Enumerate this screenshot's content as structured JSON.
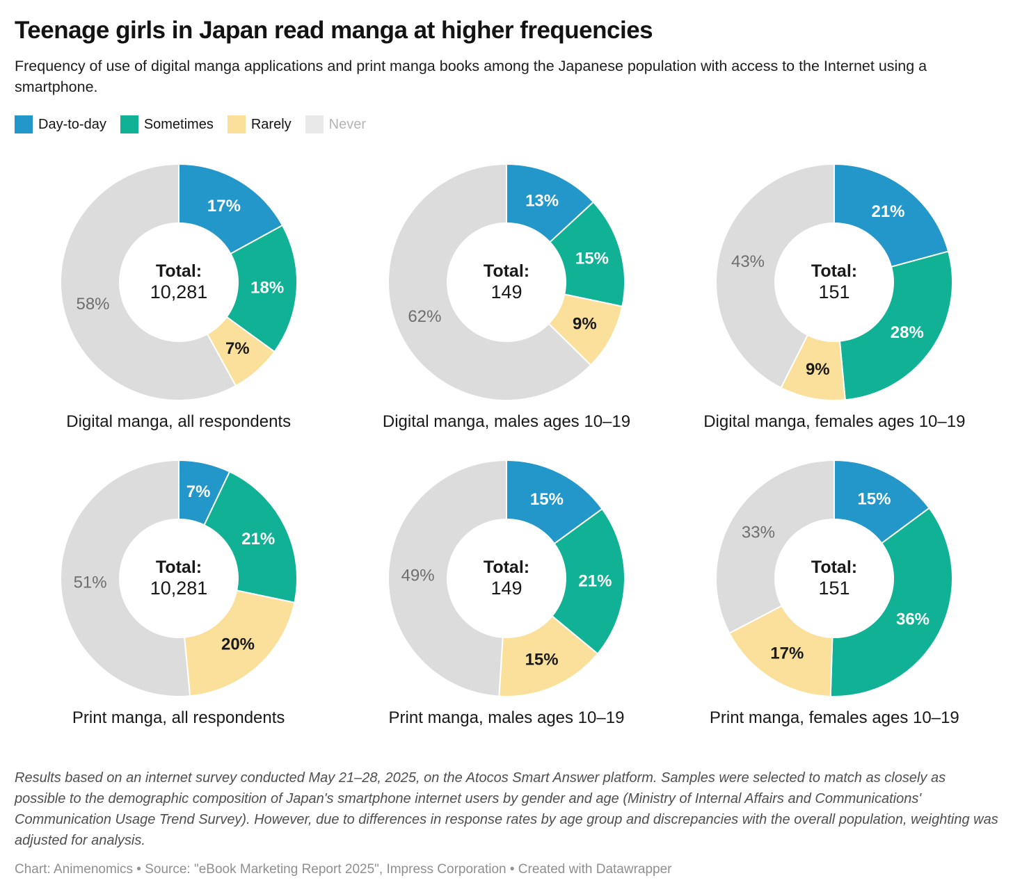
{
  "header": {
    "title": "Teenage girls in Japan read manga at higher frequencies",
    "subtitle": "Frequency of use of digital manga applications and print manga books among the Japanese population with access to the Internet using a smartphone."
  },
  "legend": [
    {
      "label": "Day-to-day",
      "swatch": "#2397c9",
      "text_color": "#131313"
    },
    {
      "label": "Sometimes",
      "swatch": "#10b194",
      "text_color": "#131313"
    },
    {
      "label": "Rarely",
      "swatch": "#fbe09c",
      "text_color": "#131313"
    },
    {
      "label": "Never",
      "swatch": "#e9e9e9",
      "text_color": "#b4b4b4"
    }
  ],
  "chart_data": {
    "type": "pie",
    "subtype": "donut",
    "legend_position": "top",
    "categories": [
      "Day-to-day",
      "Sometimes",
      "Rarely",
      "Never"
    ],
    "colors": [
      "#2397c9",
      "#10b194",
      "#fbe09c",
      "#dcdcdc"
    ],
    "value_label_colors": [
      "#ffffff",
      "#ffffff",
      "#1a1a1a",
      "#6e6e6e"
    ],
    "value_label_weights": [
      700,
      700,
      700,
      400
    ],
    "charts": [
      {
        "caption": "Digital manga, all respondents",
        "total_label": "Total:",
        "total": "10,281",
        "values": [
          17,
          18,
          7,
          58
        ],
        "labels": [
          "17%",
          "18%",
          "7%",
          "58%"
        ]
      },
      {
        "caption": "Digital manga, males ages 10–19",
        "total_label": "Total:",
        "total": "149",
        "values": [
          13,
          15,
          9,
          62
        ],
        "labels": [
          "13%",
          "15%",
          "9%",
          "62%"
        ]
      },
      {
        "caption": "Digital manga, females ages 10–19",
        "total_label": "Total:",
        "total": "151",
        "values": [
          21,
          28,
          9,
          43
        ],
        "labels": [
          "21%",
          "28%",
          "9%",
          "43%"
        ]
      },
      {
        "caption": "Print manga, all respondents",
        "total_label": "Total:",
        "total": "10,281",
        "values": [
          7,
          21,
          20,
          51
        ],
        "labels": [
          "7%",
          "21%",
          "20%",
          "51%"
        ]
      },
      {
        "caption": "Print manga, males ages 10–19",
        "total_label": "Total:",
        "total": "149",
        "values": [
          15,
          21,
          15,
          49
        ],
        "labels": [
          "15%",
          "21%",
          "15%",
          "49%"
        ]
      },
      {
        "caption": "Print manga, females ages 10–19",
        "total_label": "Total:",
        "total": "151",
        "values": [
          15,
          36,
          17,
          33
        ],
        "labels": [
          "15%",
          "36%",
          "17%",
          "33%"
        ]
      }
    ]
  },
  "footer": {
    "note": "Results based on an internet survey conducted May 21–28, 2025, on the Atocos Smart Answer platform. Samples were selected to match as closely as possible to the demographic composition of Japan's smartphone internet users by gender and age (Ministry of Internal Affairs and Communications' Communication Usage Trend Survey). However, due to differences in response rates by age group and discrepancies with the overall population, weighting was adjusted for analysis.",
    "credit": "Chart: Animenomics • Source: \"eBook Marketing Report 2025\", Impress Corporation • Created with Datawrapper"
  }
}
